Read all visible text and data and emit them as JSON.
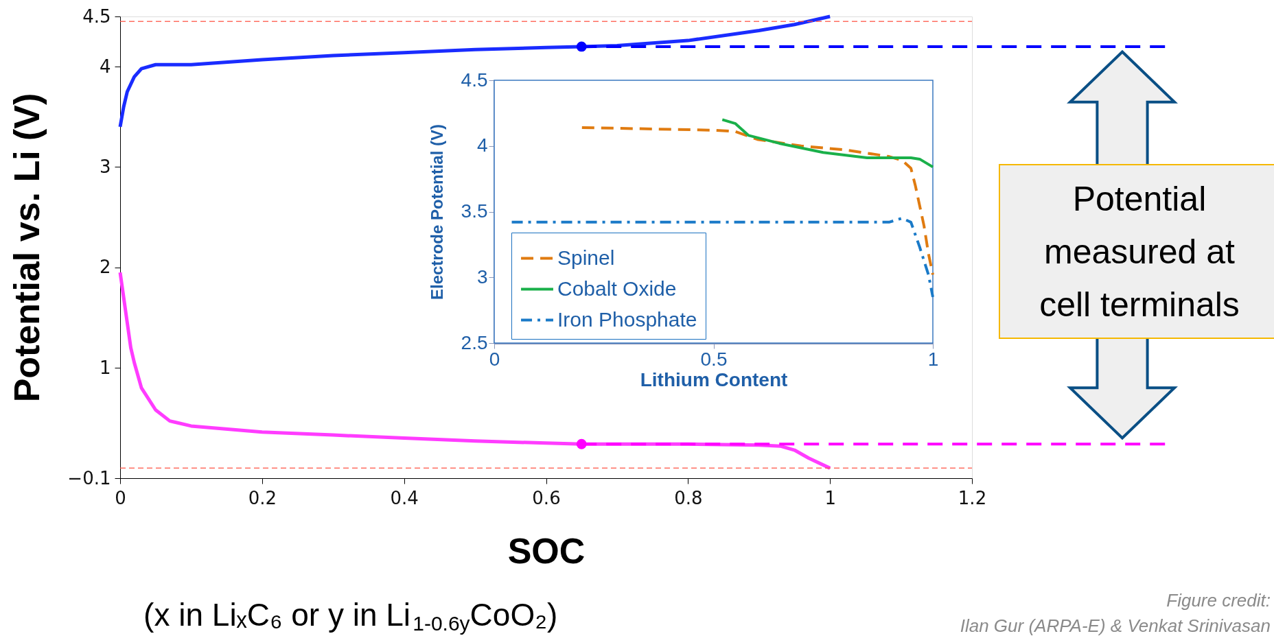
{
  "chart_data": [
    {
      "type": "line",
      "xlabel": "SOC",
      "ylabel": "Potential vs. Li  (V)",
      "xlim": [
        0,
        1.2
      ],
      "xticks": [
        0,
        0.2,
        0.4,
        0.6,
        0.8,
        1,
        1.2
      ],
      "ylim": [
        -0.1,
        4.5
      ],
      "yticks": [
        -0.1,
        1,
        2,
        3,
        4,
        4.5
      ],
      "series": [
        {
          "color": "#1a2cff",
          "x": [
            0,
            0.005,
            0.01,
            0.02,
            0.03,
            0.05,
            0.1,
            0.2,
            0.3,
            0.4,
            0.5,
            0.6,
            0.65,
            0.7,
            0.8,
            0.9,
            0.95,
            1.0
          ],
          "values": [
            3.4,
            3.6,
            3.75,
            3.9,
            3.98,
            4.02,
            4.02,
            4.07,
            4.11,
            4.14,
            4.17,
            4.19,
            4.2,
            4.21,
            4.26,
            4.36,
            4.42,
            4.5
          ]
        },
        {
          "color": "#ff3cff",
          "x": [
            0,
            0.005,
            0.01,
            0.015,
            0.02,
            0.03,
            0.05,
            0.07,
            0.1,
            0.2,
            0.3,
            0.4,
            0.5,
            0.6,
            0.65,
            0.7,
            0.8,
            0.9,
            0.93,
            0.95,
            0.97,
            1.0
          ],
          "values": [
            1.95,
            1.7,
            1.45,
            1.2,
            1.05,
            0.8,
            0.58,
            0.47,
            0.42,
            0.36,
            0.33,
            0.3,
            0.27,
            0.25,
            0.24,
            0.24,
            0.24,
            0.23,
            0.22,
            0.18,
            0.1,
            0.0
          ]
        },
        {
          "type": "scatter",
          "marker": "circle",
          "color": "#0000ff",
          "x": [
            0.65
          ],
          "values": [
            4.2
          ]
        },
        {
          "type": "scatter",
          "marker": "circle",
          "color": "#ff00ff",
          "x": [
            0.65
          ],
          "values": [
            0.24
          ]
        }
      ],
      "ref_lines": [
        {
          "axis": "y",
          "value": 4.45,
          "color": "#ff4a3a",
          "line_style": "dashed"
        },
        {
          "axis": "y",
          "value": 0,
          "color": "#ff4a3a",
          "line_style": "dashed"
        },
        {
          "axis": "y",
          "value": 4.2,
          "color": "#0000ff",
          "line_style": "dashed"
        },
        {
          "axis": "y",
          "value": 0.24,
          "color": "#ff00ff",
          "line_style": "dashed"
        }
      ],
      "annotations": [
        "(x in LiₓC₆ or y in Li$_{1-0.6y}$CoO₂)",
        "Potential measured at cell terminals",
        "Figure credit:",
        "Ilan Gur (ARPA-E) & Venkat Srinivasan"
      ]
    },
    {
      "type": "line",
      "xlabel": "Lithium Content",
      "ylabel": "Electrode Potential (V)",
      "xlim": [
        0,
        1
      ],
      "xticks": [
        0,
        0.5,
        1
      ],
      "ylim": [
        2.5,
        4.5
      ],
      "yticks": [
        2.5,
        3,
        3.5,
        4,
        4.5
      ],
      "legend": "bottom left",
      "series": [
        {
          "name": "Spinel",
          "color": "#e07b10",
          "line_style": "dashed",
          "x": [
            0.2,
            0.5,
            0.55,
            0.6,
            0.7,
            0.8,
            0.9,
            0.93,
            0.95,
            0.96,
            0.98,
            0.99,
            1.0
          ],
          "values": [
            4.14,
            4.12,
            4.11,
            4.05,
            4.0,
            3.97,
            3.92,
            3.89,
            3.83,
            3.7,
            3.39,
            3.18,
            3.02
          ]
        },
        {
          "name": "Cobalt Oxide",
          "color": "#1ab04a",
          "line_style": "solid",
          "x": [
            0.52,
            0.55,
            0.58,
            0.65,
            0.75,
            0.85,
            0.95,
            0.97,
            1.0
          ],
          "values": [
            4.2,
            4.17,
            4.08,
            4.02,
            3.95,
            3.91,
            3.91,
            3.9,
            3.84
          ]
        },
        {
          "name": "Iron Phosphate",
          "color": "#1a7ac8",
          "line_style": "dashdot",
          "x": [
            0.04,
            0.9,
            0.93,
            0.95,
            0.97,
            0.99,
            1.0
          ],
          "values": [
            3.42,
            3.42,
            3.45,
            3.42,
            3.23,
            3.02,
            2.85
          ]
        }
      ]
    }
  ]
}
